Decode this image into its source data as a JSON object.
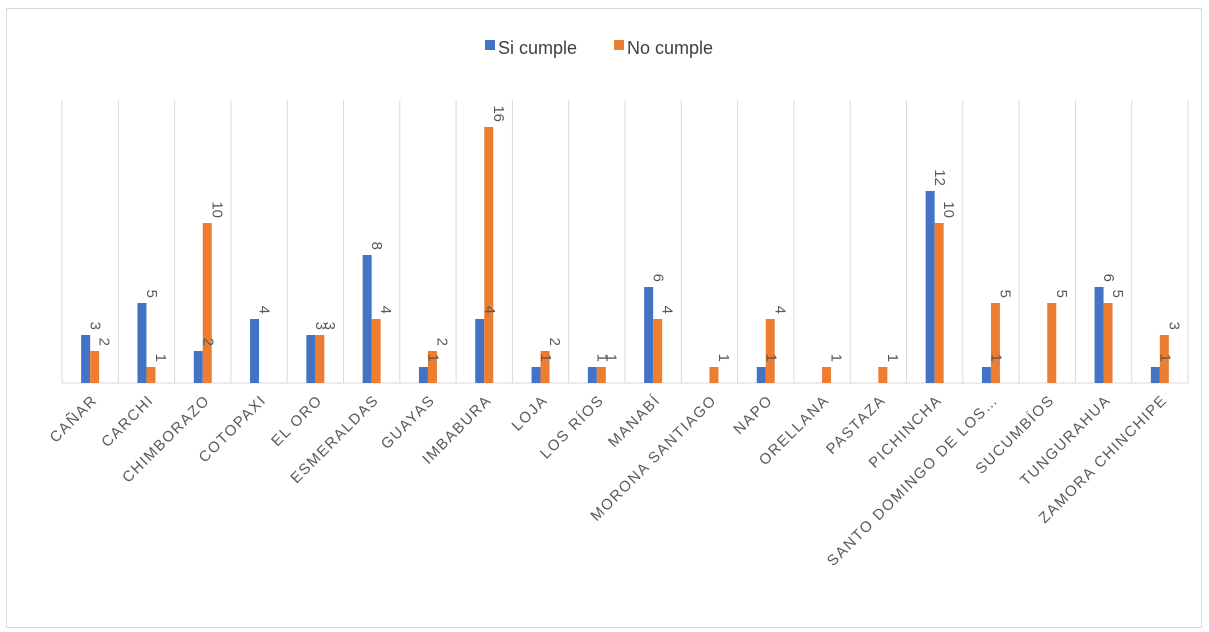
{
  "chart_data": {
    "type": "bar",
    "title": "",
    "xlabel": "",
    "ylabel": "",
    "ylim": [
      0,
      18
    ],
    "grid": "vertical category separators",
    "legend": "top-center",
    "categories": [
      "CAÑAR",
      "CARCHI",
      "CHIMBORAZO",
      "COTOPAXI",
      "EL ORO",
      "ESMERALDAS",
      "GUAYAS",
      "IMBABURA",
      "LOJA",
      "LOS RÍOS",
      "MANABÍ",
      "MORONA SANTIAGO",
      "NAPO",
      "ORELLANA",
      "PASTAZA",
      "PICHINCHA",
      "SANTO DOMINGO DE LOS…",
      "SUCUMBÍOS",
      "TUNGURAHUA",
      "ZAMORA CHINCHIPE"
    ],
    "series": [
      {
        "name": "Si cumple",
        "color": "#4472c4",
        "values": [
          3,
          5,
          2,
          4,
          3,
          8,
          1,
          4,
          1,
          1,
          6,
          null,
          1,
          null,
          null,
          12,
          1,
          null,
          6,
          1
        ]
      },
      {
        "name": "No cumple",
        "color": "#ed7d31",
        "values": [
          2,
          1,
          10,
          null,
          3,
          4,
          2,
          16,
          2,
          1,
          4,
          1,
          4,
          1,
          1,
          10,
          5,
          5,
          5,
          3
        ]
      }
    ]
  }
}
